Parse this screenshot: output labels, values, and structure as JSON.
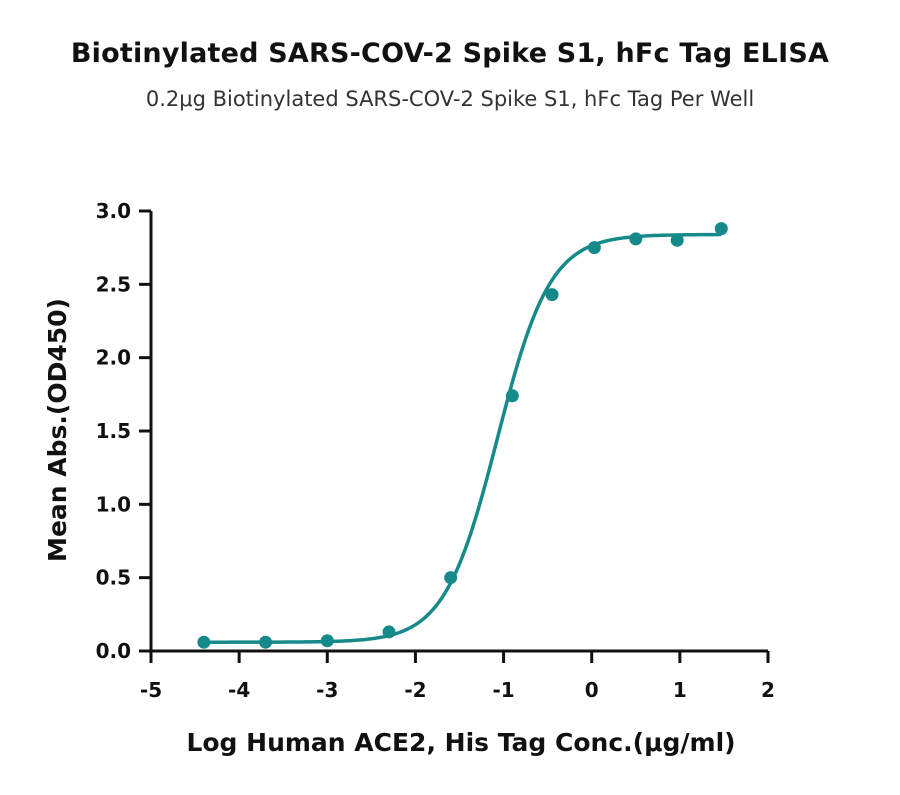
{
  "chart_data": {
    "type": "scatter",
    "title": "Biotinylated SARS-COV-2 Spike S1, hFc Tag ELISA",
    "subtitle": "0.2μg Biotinylated SARS-COV-2 Spike S1, hFc Tag Per Well",
    "xlabel": "Log Human ACE2, His Tag Conc.(μg/ml)",
    "ylabel": "Mean Abs.(OD450)",
    "xlim": [
      -5,
      2
    ],
    "ylim": [
      0,
      3
    ],
    "xticks": [
      "-5",
      "-4",
      "-3",
      "-2",
      "-1",
      "0",
      "1",
      "2"
    ],
    "yticks": [
      "0.0",
      "0.5",
      "1.0",
      "1.5",
      "2.0",
      "2.5",
      "3.0"
    ],
    "grid": false,
    "color": "#168a8a",
    "series": [
      {
        "x": [
          -4.4,
          -3.7,
          -3.0,
          -2.3,
          -1.6,
          -0.9,
          -0.45,
          0.03,
          0.5,
          0.97,
          1.47
        ],
        "y": [
          0.06,
          0.06,
          0.07,
          0.13,
          0.5,
          1.74,
          2.43,
          2.75,
          2.81,
          2.8,
          2.88
        ],
        "fit": {
          "model": "4PL",
          "bottom": 0.06,
          "top": 2.84,
          "logEC50": -1.07,
          "hill": 1.45
        }
      }
    ]
  }
}
